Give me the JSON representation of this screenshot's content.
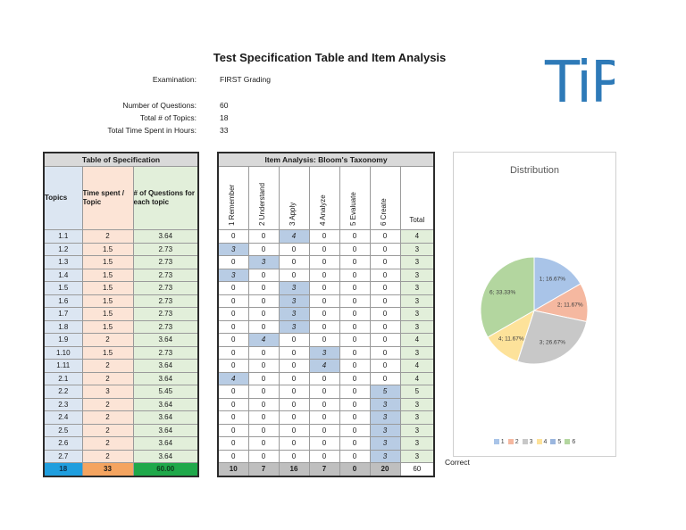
{
  "title": "Test Specification Table and Item Analysis",
  "meta": {
    "examination_label": "Examination:",
    "examination_value": "FIRST Grading",
    "num_questions_label": "Number of Questions:",
    "num_questions_value": "60",
    "total_topics_label": "Total # of Topics:",
    "total_topics_value": "18",
    "total_time_label": "Total Time Spent in Hours:",
    "total_time_value": "33"
  },
  "logo_text": "TiP",
  "spec": {
    "caption": "Table of Specification",
    "headers": [
      "Topics",
      "Time spent / Topic",
      "# of Questions for each topic"
    ],
    "rows": [
      [
        "1.1",
        "2",
        "3.64"
      ],
      [
        "1.2",
        "1.5",
        "2.73"
      ],
      [
        "1.3",
        "1.5",
        "2.73"
      ],
      [
        "1.4",
        "1.5",
        "2.73"
      ],
      [
        "1.5",
        "1.5",
        "2.73"
      ],
      [
        "1.6",
        "1.5",
        "2.73"
      ],
      [
        "1.7",
        "1.5",
        "2.73"
      ],
      [
        "1.8",
        "1.5",
        "2.73"
      ],
      [
        "1.9",
        "2",
        "3.64"
      ],
      [
        "1.10",
        "1.5",
        "2.73"
      ],
      [
        "1.11",
        "2",
        "3.64"
      ],
      [
        "2.1",
        "2",
        "3.64"
      ],
      [
        "2.2",
        "3",
        "5.45"
      ],
      [
        "2.3",
        "2",
        "3.64"
      ],
      [
        "2.4",
        "2",
        "3.64"
      ],
      [
        "2.5",
        "2",
        "3.64"
      ],
      [
        "2.6",
        "2",
        "3.64"
      ],
      [
        "2.7",
        "2",
        "3.64"
      ]
    ],
    "totals": [
      "18",
      "33",
      "60.00"
    ]
  },
  "item": {
    "caption": "Item Analysis: Bloom's Taxonomy",
    "headers": [
      "1 Remember",
      "2 Understand",
      "3 Apply",
      "4 Analyze",
      "5 Evaluate",
      "6 Create",
      "Total"
    ],
    "rows": [
      [
        "0",
        "0",
        "4",
        "0",
        "0",
        "0",
        "4"
      ],
      [
        "3",
        "0",
        "0",
        "0",
        "0",
        "0",
        "3"
      ],
      [
        "0",
        "3",
        "0",
        "0",
        "0",
        "0",
        "3"
      ],
      [
        "3",
        "0",
        "0",
        "0",
        "0",
        "0",
        "3"
      ],
      [
        "0",
        "0",
        "3",
        "0",
        "0",
        "0",
        "3"
      ],
      [
        "0",
        "0",
        "3",
        "0",
        "0",
        "0",
        "3"
      ],
      [
        "0",
        "0",
        "3",
        "0",
        "0",
        "0",
        "3"
      ],
      [
        "0",
        "0",
        "3",
        "0",
        "0",
        "0",
        "3"
      ],
      [
        "0",
        "4",
        "0",
        "0",
        "0",
        "0",
        "4"
      ],
      [
        "0",
        "0",
        "0",
        "3",
        "0",
        "0",
        "3"
      ],
      [
        "0",
        "0",
        "0",
        "4",
        "0",
        "0",
        "4"
      ],
      [
        "4",
        "0",
        "0",
        "0",
        "0",
        "0",
        "4"
      ],
      [
        "0",
        "0",
        "0",
        "0",
        "0",
        "5",
        "5"
      ],
      [
        "0",
        "0",
        "0",
        "0",
        "0",
        "3",
        "3"
      ],
      [
        "0",
        "0",
        "0",
        "0",
        "0",
        "3",
        "3"
      ],
      [
        "0",
        "0",
        "0",
        "0",
        "0",
        "3",
        "3"
      ],
      [
        "0",
        "0",
        "0",
        "0",
        "0",
        "3",
        "3"
      ],
      [
        "0",
        "0",
        "0",
        "0",
        "0",
        "3",
        "3"
      ]
    ],
    "highlight_col": [
      2,
      0,
      1,
      0,
      2,
      2,
      2,
      2,
      1,
      3,
      3,
      0,
      5,
      5,
      5,
      5,
      5,
      5
    ],
    "totals": [
      "10",
      "7",
      "16",
      "7",
      "0",
      "20",
      "60"
    ],
    "correct_label": "Correct"
  },
  "chart_data": {
    "type": "pie",
    "title": "Distribution",
    "categories": [
      "1",
      "2",
      "3",
      "4",
      "5",
      "6"
    ],
    "values": [
      16.67,
      11.67,
      26.67,
      11.67,
      0,
      33.33
    ],
    "labels": [
      "1; 16.67%",
      "2; 11.67%",
      "3; 26.67%",
      "4; 11.67%",
      "",
      "6; 33.33%"
    ],
    "colors": [
      "#a9c4e8",
      "#f5b8a0",
      "#c8c8c8",
      "#fde29a",
      "#9bb6de",
      "#b3d69f"
    ],
    "legend_position": "bottom"
  }
}
